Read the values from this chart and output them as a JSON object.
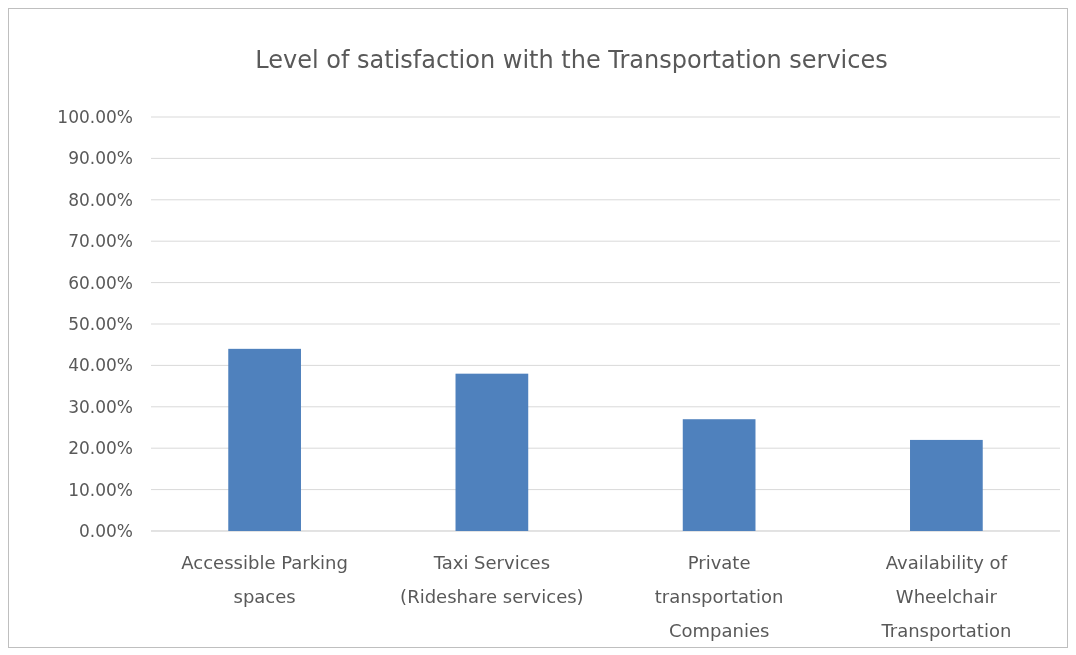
{
  "chart_data": {
    "type": "bar",
    "title": "Level of satisfaction with the Transportation services",
    "categories": [
      "Accessible Parking spaces",
      "Taxi Services (Rideshare services)",
      "Private transportation Companies",
      "Availability of Wheelchair Transportation"
    ],
    "values": [
      44,
      38,
      27,
      22
    ],
    "color": "#4f81bd",
    "ylim": [
      0,
      100
    ],
    "yticks": [
      {
        "value": 0,
        "label": "0.00%"
      },
      {
        "value": 10,
        "label": "10.00%"
      },
      {
        "value": 20,
        "label": "20.00%"
      },
      {
        "value": 30,
        "label": "30.00%"
      },
      {
        "value": 40,
        "label": "40.00%"
      },
      {
        "value": 50,
        "label": "50.00%"
      },
      {
        "value": 60,
        "label": "60.00%"
      },
      {
        "value": 70,
        "label": "70.00%"
      },
      {
        "value": 80,
        "label": "80.00%"
      },
      {
        "value": 90,
        "label": "90.00%"
      },
      {
        "value": 100,
        "label": "100.00%"
      }
    ],
    "grid": "y"
  }
}
